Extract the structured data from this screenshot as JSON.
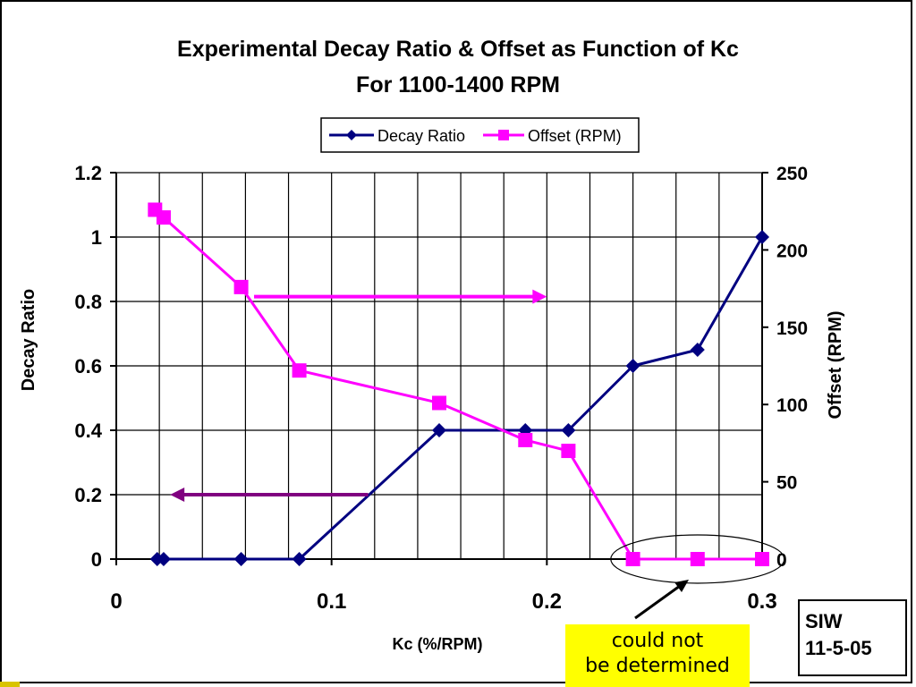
{
  "chart_data": {
    "type": "line",
    "title": "Experimental Decay Ratio & Offset as Function of Kc",
    "subtitle": "For 1100-1400 RPM",
    "xlabel": "Kc (%/RPM)",
    "ylabel": "Decay Ratio",
    "y2label": "Offset (RPM)",
    "xlim": [
      0,
      0.3
    ],
    "ylim": [
      0,
      1.2
    ],
    "y2lim": [
      0,
      250
    ],
    "x_ticks": [
      "0",
      "0.1",
      "0.2",
      "0.3"
    ],
    "y_ticks": [
      "0",
      "0.2",
      "0.4",
      "0.6",
      "0.8",
      "1",
      "1.2"
    ],
    "y2_ticks": [
      "0",
      "50",
      "100",
      "150",
      "200",
      "250"
    ],
    "grid": true,
    "legend_position": "top-center",
    "series": [
      {
        "name": "Decay Ratio",
        "axis": "left",
        "color": "#000080",
        "marker": "diamond",
        "x": [
          0.019,
          0.022,
          0.058,
          0.085,
          0.15,
          0.19,
          0.21,
          0.24,
          0.27,
          0.3
        ],
        "y": [
          0,
          0,
          0,
          0,
          0.4,
          0.4,
          0.4,
          0.6,
          0.65,
          1.0
        ]
      },
      {
        "name": "Offset (RPM)",
        "axis": "right",
        "color": "#ff00ff",
        "marker": "square",
        "x": [
          0.018,
          0.022,
          0.058,
          0.085,
          0.15,
          0.19,
          0.21,
          0.24,
          0.27,
          0.3
        ],
        "y": [
          226,
          221,
          176,
          122,
          101,
          77,
          70,
          0,
          0,
          0
        ]
      }
    ],
    "annotations": {
      "offset_arrow": {
        "x_from": 0.064,
        "x_to": 0.2,
        "y": 0.815,
        "direction": "right",
        "color": "#ff00ff"
      },
      "decay_arrow": {
        "x_from": 0.117,
        "x_to": 0.025,
        "y": 0.2,
        "direction": "left",
        "color": "#800080"
      },
      "ellipse": {
        "x_center": 0.27,
        "y_center": 0
      }
    }
  },
  "note": {
    "line1": "could not",
    "line2": "be determined"
  },
  "signature": {
    "name": "SIW",
    "date": "11-5-05"
  }
}
